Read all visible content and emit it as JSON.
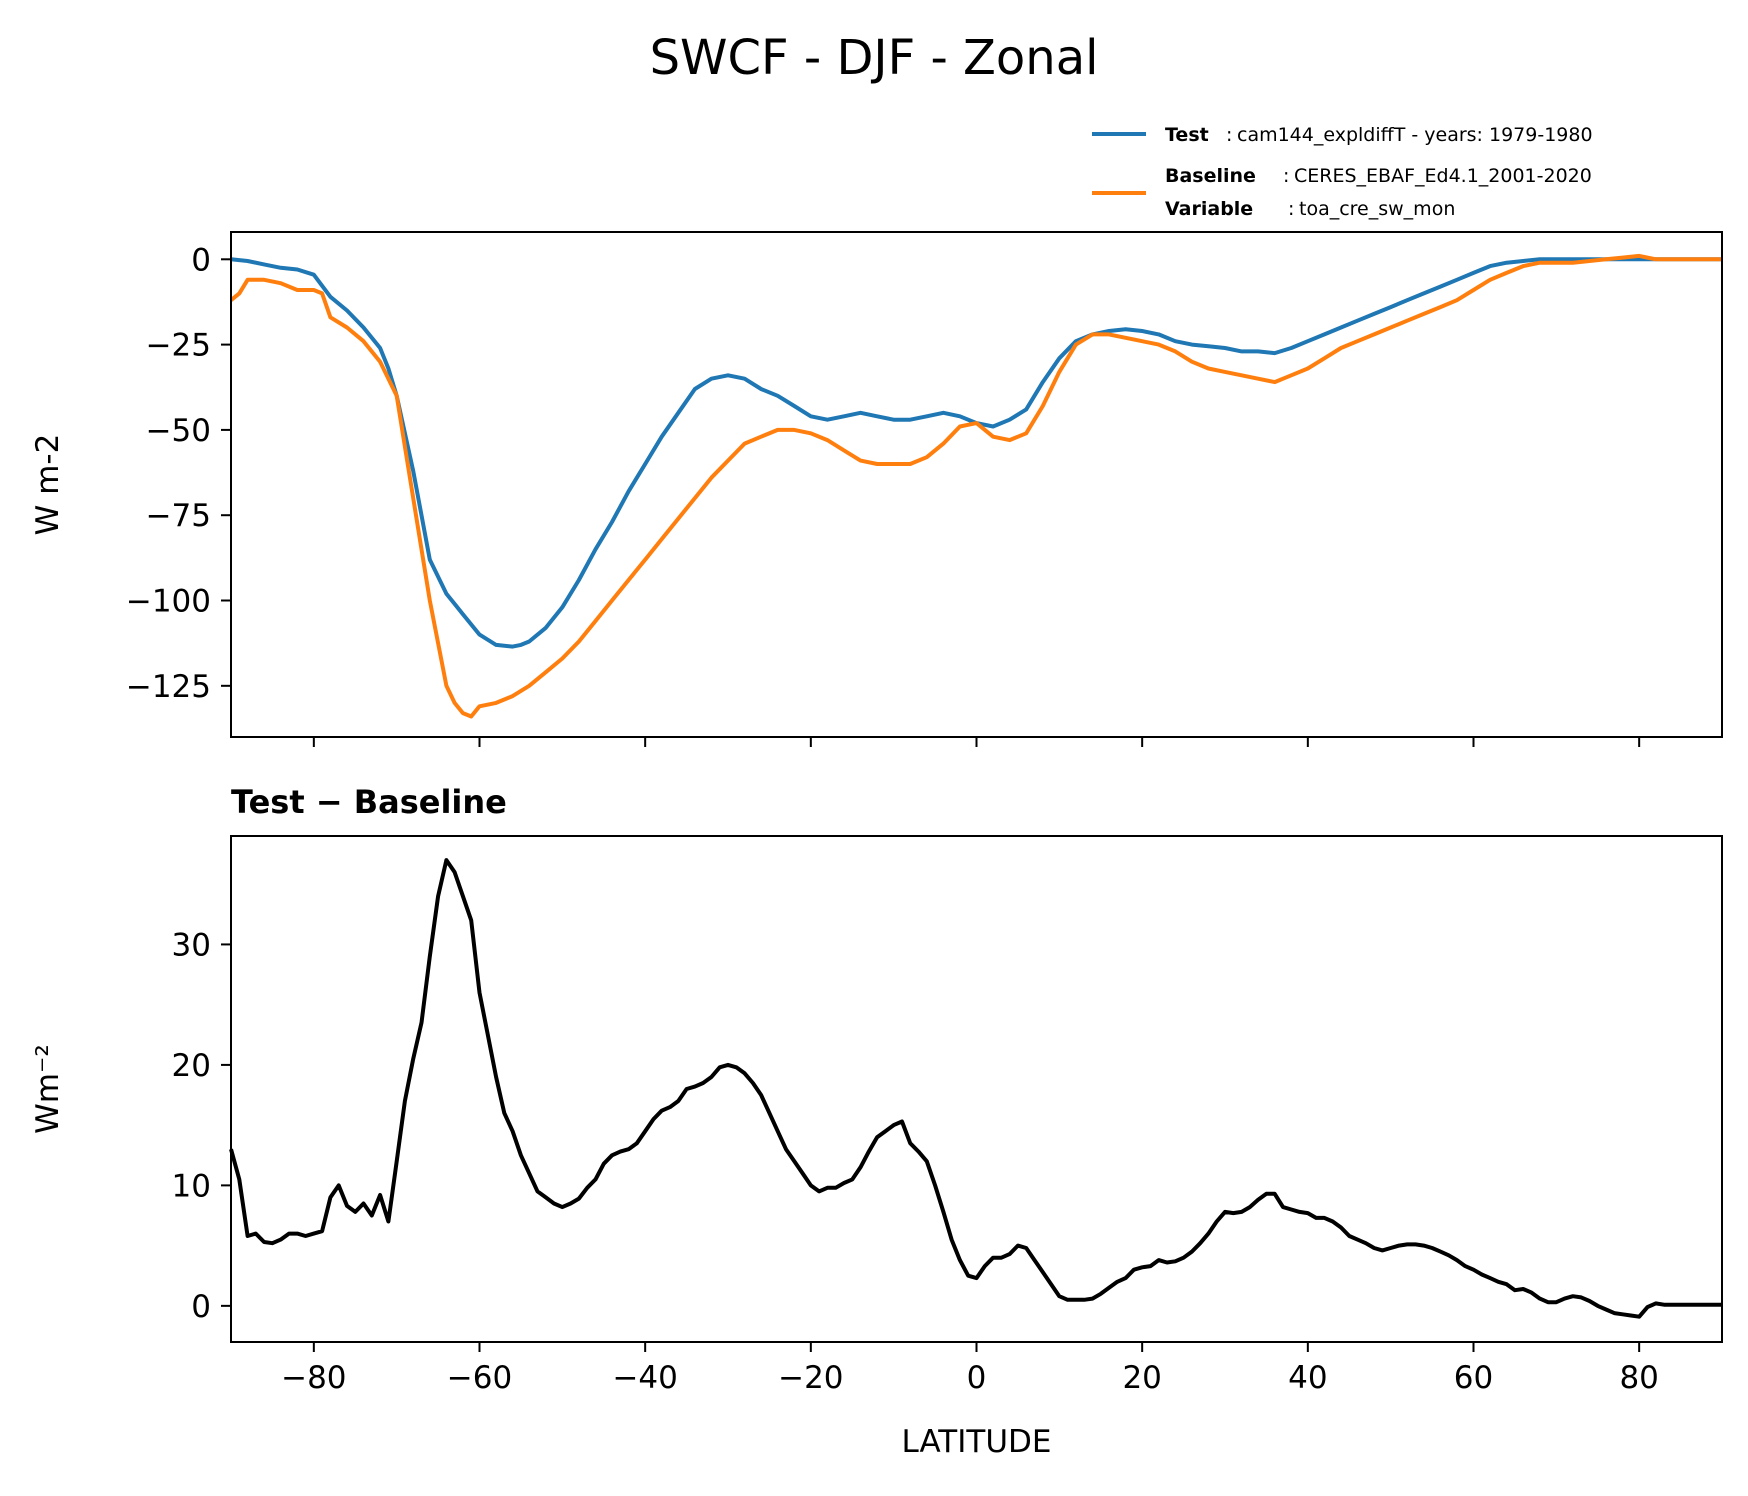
{
  "figure": {
    "title": "SWCF - DJF - Zonal",
    "legend": {
      "test_key": "Test",
      "test_value": "cam144_expldiffT - years: 1979-1980",
      "baseline_key": "Baseline",
      "baseline_value": "CERES_EBAF_Ed4.1_2001-2020",
      "variable_key": "Variable",
      "variable_value": "toa_cre_sw_mon"
    }
  },
  "chart_data": [
    {
      "type": "line",
      "title": "",
      "xlabel": "",
      "ylabel": "W m-2",
      "xlim": [
        -90,
        90
      ],
      "ylim": [
        -140,
        8
      ],
      "x_ticks": [
        -80,
        -60,
        -40,
        -20,
        0,
        20,
        40,
        60,
        80
      ],
      "y_ticks": [
        0,
        -25,
        -50,
        -75,
        -100,
        -125
      ],
      "y_tick_labels": [
        "0",
        "−25",
        "−50",
        "−75",
        "−100",
        "−125"
      ],
      "show_x_tick_labels": false,
      "series": [
        {
          "name": "Test",
          "color": "#1f77b4",
          "x": [
            -90,
            -88,
            -86,
            -84,
            -82,
            -80,
            -78,
            -76,
            -74,
            -72,
            -71,
            -70,
            -68,
            -66,
            -64,
            -63,
            -62,
            -60,
            -58,
            -56,
            -55,
            -54,
            -52,
            -50,
            -48,
            -46,
            -44,
            -42,
            -40,
            -38,
            -36,
            -34,
            -32,
            -30,
            -28,
            -26,
            -24,
            -22,
            -20,
            -18,
            -16,
            -14,
            -12,
            -10,
            -8,
            -6,
            -4,
            -2,
            0,
            2,
            4,
            6,
            8,
            10,
            12,
            14,
            16,
            18,
            20,
            22,
            24,
            26,
            28,
            30,
            32,
            34,
            36,
            38,
            40,
            42,
            44,
            46,
            48,
            50,
            52,
            54,
            56,
            58,
            60,
            62,
            64,
            66,
            68,
            70,
            72,
            74,
            76,
            78,
            80,
            82,
            84,
            86,
            88,
            90
          ],
          "values": [
            0,
            -0.5,
            -1.5,
            -2.5,
            -3,
            -4.5,
            -11,
            -15,
            -20,
            -26,
            -32,
            -40,
            -62,
            -88,
            -98,
            -101,
            -104,
            -110,
            -113,
            -113.5,
            -113,
            -112,
            -108,
            -102,
            -94,
            -85,
            -77,
            -68,
            -60,
            -52,
            -45,
            -38,
            -35,
            -34,
            -35,
            -38,
            -40,
            -43,
            -46,
            -47,
            -46,
            -45,
            -46,
            -47,
            -47,
            -46,
            -45,
            -46,
            -48,
            -49,
            -47,
            -44,
            -36,
            -29,
            -24,
            -22,
            -21,
            -20.5,
            -21,
            -22,
            -24,
            -25,
            -25.5,
            -26,
            -27,
            -27,
            -27.5,
            -26,
            -24,
            -22,
            -20,
            -18,
            -16,
            -14,
            -12,
            -10,
            -8,
            -6,
            -4,
            -2,
            -1,
            -0.5,
            0,
            0,
            0,
            0,
            0,
            0,
            0,
            0,
            0,
            0,
            0,
            0
          ]
        },
        {
          "name": "Baseline",
          "color": "#ff7f0e",
          "x": [
            -90,
            -89,
            -88,
            -86,
            -84,
            -82,
            -80,
            -79,
            -78,
            -76,
            -74,
            -72,
            -70,
            -68,
            -66,
            -64,
            -63,
            -62,
            -61,
            -60,
            -58,
            -56,
            -54,
            -52,
            -50,
            -48,
            -46,
            -44,
            -42,
            -40,
            -38,
            -36,
            -34,
            -32,
            -30,
            -28,
            -26,
            -24,
            -22,
            -20,
            -18,
            -16,
            -14,
            -12,
            -10,
            -8,
            -6,
            -4,
            -2,
            0,
            2,
            4,
            6,
            8,
            10,
            12,
            14,
            16,
            18,
            20,
            22,
            24,
            26,
            28,
            30,
            32,
            34,
            36,
            38,
            40,
            42,
            44,
            46,
            48,
            50,
            52,
            54,
            56,
            58,
            60,
            62,
            64,
            66,
            68,
            70,
            72,
            74,
            76,
            78,
            80,
            82,
            84,
            86,
            88,
            90
          ],
          "values": [
            -12,
            -10,
            -6,
            -6,
            -7,
            -9,
            -9,
            -10,
            -17,
            -20,
            -24,
            -30,
            -40,
            -70,
            -100,
            -125,
            -130,
            -133,
            -134,
            -131,
            -130,
            -128,
            -125,
            -121,
            -117,
            -112,
            -106,
            -100,
            -94,
            -88,
            -82,
            -76,
            -70,
            -64,
            -59,
            -54,
            -52,
            -50,
            -50,
            -51,
            -53,
            -56,
            -59,
            -60,
            -60,
            -60,
            -58,
            -54,
            -49,
            -48,
            -52,
            -53,
            -51,
            -43,
            -33,
            -25,
            -22,
            -22,
            -23,
            -24,
            -25,
            -27,
            -30,
            -32,
            -33,
            -34,
            -35,
            -36,
            -34,
            -32,
            -29,
            -26,
            -24,
            -22,
            -20,
            -18,
            -16,
            -14,
            -12,
            -9,
            -6,
            -4,
            -2,
            -1,
            -1,
            -1,
            -0.5,
            0,
            0.5,
            1,
            0,
            0,
            0,
            0,
            0
          ]
        }
      ]
    },
    {
      "type": "line",
      "title": "Test − Baseline",
      "xlabel": "LATITUDE",
      "ylabel": "Wm⁻²",
      "xlim": [
        -90,
        90
      ],
      "ylim": [
        -3,
        39
      ],
      "x_ticks": [
        -80,
        -60,
        -40,
        -20,
        0,
        20,
        40,
        60,
        80
      ],
      "x_tick_labels": [
        "−80",
        "−60",
        "−40",
        "−20",
        "0",
        "20",
        "40",
        "60",
        "80"
      ],
      "y_ticks": [
        0,
        10,
        20,
        30
      ],
      "y_tick_labels": [
        "0",
        "10",
        "20",
        "30"
      ],
      "show_x_tick_labels": true,
      "series": [
        {
          "name": "Test − Baseline",
          "color": "#000000",
          "x": [
            -90,
            -89,
            -88,
            -87,
            -86,
            -85,
            -84,
            -83,
            -82,
            -81,
            -80,
            -79,
            -78,
            -77,
            -76,
            -75,
            -74,
            -73,
            -72,
            -71,
            -70,
            -69,
            -68,
            -67,
            -66,
            -65,
            -64,
            -63,
            -62,
            -61,
            -60,
            -59,
            -58,
            -57,
            -56,
            -55,
            -54,
            -53,
            -52,
            -51,
            -50,
            -49,
            -48,
            -47,
            -46,
            -45,
            -44,
            -43,
            -42,
            -41,
            -40,
            -39,
            -38,
            -37,
            -36,
            -35,
            -34,
            -33,
            -32,
            -31,
            -30,
            -29,
            -28,
            -27,
            -26,
            -25,
            -24,
            -23,
            -22,
            -21,
            -20,
            -19,
            -18,
            -17,
            -16,
            -15,
            -14,
            -13,
            -12,
            -11,
            -10,
            -9,
            -8,
            -7,
            -6,
            -5,
            -4,
            -3,
            -2,
            -1,
            0,
            1,
            2,
            3,
            4,
            5,
            6,
            7,
            8,
            9,
            10,
            11,
            12,
            13,
            14,
            15,
            16,
            17,
            18,
            19,
            20,
            21,
            22,
            23,
            24,
            25,
            26,
            27,
            28,
            29,
            30,
            31,
            32,
            33,
            34,
            35,
            36,
            37,
            38,
            39,
            40,
            41,
            42,
            43,
            44,
            45,
            46,
            47,
            48,
            49,
            50,
            51,
            52,
            53,
            54,
            55,
            56,
            57,
            58,
            59,
            60,
            61,
            62,
            63,
            64,
            65,
            66,
            67,
            68,
            69,
            70,
            71,
            72,
            73,
            74,
            75,
            76,
            77,
            78,
            79,
            80,
            81,
            82,
            83,
            84,
            85,
            86,
            87,
            88,
            89,
            90
          ],
          "values": [
            13,
            10.5,
            5.8,
            6,
            5.3,
            5.2,
            5.5,
            6,
            6,
            5.8,
            6,
            6.2,
            9,
            10,
            8.3,
            7.8,
            8.5,
            7.5,
            9.2,
            7,
            12,
            17,
            20.5,
            23.5,
            29,
            34,
            37,
            36,
            34,
            32,
            26,
            22.5,
            19,
            16,
            14.5,
            12.5,
            11,
            9.5,
            9,
            8.5,
            8.2,
            8.5,
            8.9,
            9.8,
            10.5,
            11.8,
            12.5,
            12.8,
            13,
            13.5,
            14.5,
            15.5,
            16.2,
            16.5,
            17,
            18,
            18.2,
            18.5,
            19,
            19.8,
            20,
            19.8,
            19.3,
            18.5,
            17.5,
            16,
            14.5,
            13,
            12,
            11,
            10,
            9.5,
            9.8,
            9.8,
            10.2,
            10.5,
            11.5,
            12.8,
            14,
            14.5,
            15,
            15.3,
            13.5,
            12.8,
            12,
            10,
            7.8,
            5.5,
            3.8,
            2.5,
            2.3,
            3.3,
            4,
            4,
            4.3,
            5,
            4.8,
            3.8,
            2.8,
            1.8,
            0.8,
            0.5,
            0.5,
            0.5,
            0.6,
            1,
            1.5,
            2,
            2.3,
            3,
            3.2,
            3.3,
            3.8,
            3.6,
            3.7,
            4,
            4.5,
            5.2,
            6,
            7,
            7.8,
            7.7,
            7.8,
            8.2,
            8.8,
            9.3,
            9.3,
            8.2,
            8,
            7.8,
            7.7,
            7.3,
            7.3,
            7,
            6.5,
            5.8,
            5.5,
            5.2,
            4.8,
            4.6,
            4.8,
            5,
            5.1,
            5.1,
            5,
            4.8,
            4.5,
            4.2,
            3.8,
            3.3,
            3,
            2.6,
            2.3,
            2,
            1.8,
            1.3,
            1.4,
            1.1,
            0.6,
            0.3,
            0.3,
            0.6,
            0.8,
            0.7,
            0.4,
            0,
            -0.3,
            -0.6,
            -0.7,
            -0.8,
            -0.9,
            -0.1,
            0.2,
            0.1,
            0.1,
            0.1,
            0.1,
            0.1,
            0.1,
            0.1,
            0.1
          ]
        }
      ]
    }
  ]
}
